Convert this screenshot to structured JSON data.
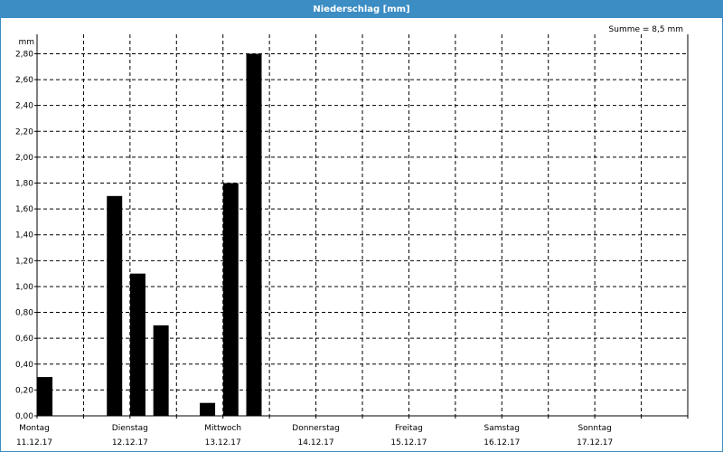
{
  "window": {
    "title": "Niederschlag [mm]"
  },
  "summary": "Summe = 8,5 mm",
  "colors": {
    "titlebar": "#3c8dc4",
    "bars": "#000000",
    "grid": "#000000"
  },
  "chart_data": {
    "type": "bar",
    "title": "Niederschlag [mm]",
    "ylabel": "mm",
    "xlabel": "",
    "ylim": [
      0,
      2.95
    ],
    "grid": true,
    "yticks": [
      0,
      0.2,
      0.4,
      0.6,
      0.8,
      1.0,
      1.2,
      1.4,
      1.6,
      1.8,
      2.0,
      2.2,
      2.4,
      2.6,
      2.8
    ],
    "ytick_labels": [
      "0,00",
      "0,20",
      "0,40",
      "0,60",
      "0,80",
      "1,00",
      "1,20",
      "1,40",
      "1,60",
      "1,80",
      "2,00",
      "2,20",
      "2,40",
      "2,60",
      "2,80"
    ],
    "day_labels": [
      {
        "day": "Montag",
        "date": "11.12.17"
      },
      {
        "day": "Dienstag",
        "date": "12.12.17"
      },
      {
        "day": "Mittwoch",
        "date": "13.12.17"
      },
      {
        "day": "Donnerstag",
        "date": "14.12.17"
      },
      {
        "day": "Freitag",
        "date": "15.12.17"
      },
      {
        "day": "Samstag",
        "date": "16.12.17"
      },
      {
        "day": "Sonntag",
        "date": "17.12.17"
      }
    ],
    "x_range_hours": [
      0,
      168
    ],
    "x": [
      2,
      20,
      26,
      32,
      44,
      50,
      56
    ],
    "values": [
      0.3,
      1.7,
      1.1,
      0.7,
      0.1,
      1.8,
      2.8
    ]
  }
}
